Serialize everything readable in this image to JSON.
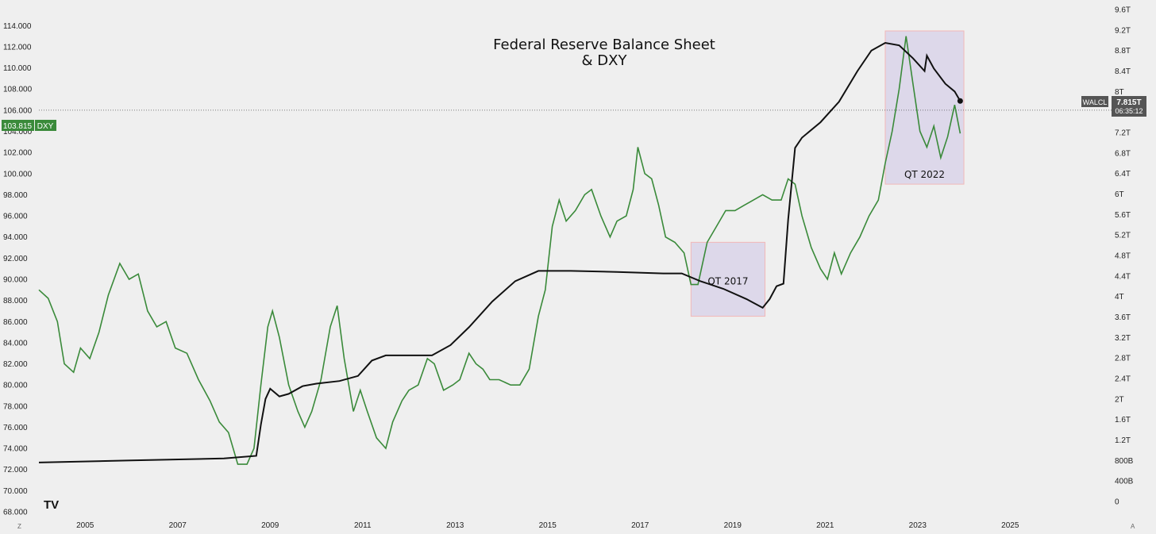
{
  "chart_data": {
    "type": "line",
    "title_line1": "Federal Reserve Balance Sheet",
    "title_line2": "& DXY",
    "left_axis": {
      "name": "DXY",
      "range": [
        68,
        115
      ],
      "ticks": [
        "68.000",
        "70.000",
        "72.000",
        "74.000",
        "76.000",
        "78.000",
        "80.000",
        "82.000",
        "84.000",
        "86.000",
        "88.000",
        "90.000",
        "92.000",
        "94.000",
        "96.000",
        "98.000",
        "100.000",
        "102.000",
        "104.000",
        "106.000",
        "108.000",
        "110.000",
        "112.000",
        "114.000"
      ],
      "tick_values": [
        68,
        70,
        72,
        74,
        76,
        78,
        80,
        82,
        84,
        86,
        88,
        90,
        92,
        94,
        96,
        98,
        100,
        102,
        104,
        106,
        108,
        110,
        112,
        114
      ]
    },
    "right_axis": {
      "name": "WALCL",
      "range_trillions": [
        0,
        9.6
      ],
      "ticks": [
        "0",
        "400B",
        "800B",
        "1.2T",
        "1.6T",
        "2T",
        "2.4T",
        "2.8T",
        "3.2T",
        "3.6T",
        "4T",
        "4.4T",
        "4.8T",
        "5.2T",
        "5.6T",
        "6T",
        "6.4T",
        "6.8T",
        "7.2T",
        "7.6T",
        "8T",
        "8.4T",
        "8.8T",
        "9.2T",
        "9.6T"
      ],
      "tick_values": [
        0,
        0.4,
        0.8,
        1.2,
        1.6,
        2.0,
        2.4,
        2.8,
        3.2,
        3.6,
        4.0,
        4.4,
        4.8,
        5.2,
        5.6,
        6.0,
        6.4,
        6.8,
        7.2,
        7.6,
        8.0,
        8.4,
        8.8,
        9.2,
        9.6
      ]
    },
    "x_axis": {
      "range": [
        2004.0,
        2026.3
      ],
      "ticks": [
        "2005",
        "2007",
        "2009",
        "2011",
        "2013",
        "2015",
        "2017",
        "2019",
        "2021",
        "2023",
        "2025"
      ],
      "tick_values": [
        2005,
        2007,
        2009,
        2011,
        2013,
        2015,
        2017,
        2019,
        2021,
        2023,
        2025
      ]
    },
    "series": [
      {
        "name": "DXY",
        "color": "#3a8a3a",
        "axis": "left",
        "points": [
          [
            2004.0,
            89.0
          ],
          [
            2004.2,
            88.2
          ],
          [
            2004.4,
            86.0
          ],
          [
            2004.55,
            82.0
          ],
          [
            2004.75,
            81.2
          ],
          [
            2004.9,
            83.5
          ],
          [
            2005.1,
            82.5
          ],
          [
            2005.3,
            85.0
          ],
          [
            2005.5,
            88.5
          ],
          [
            2005.75,
            91.5
          ],
          [
            2005.95,
            90.0
          ],
          [
            2006.15,
            90.5
          ],
          [
            2006.35,
            87.0
          ],
          [
            2006.55,
            85.5
          ],
          [
            2006.75,
            86.0
          ],
          [
            2006.95,
            83.5
          ],
          [
            2007.2,
            83.0
          ],
          [
            2007.45,
            80.5
          ],
          [
            2007.7,
            78.5
          ],
          [
            2007.9,
            76.5
          ],
          [
            2008.1,
            75.5
          ],
          [
            2008.3,
            72.5
          ],
          [
            2008.5,
            72.5
          ],
          [
            2008.65,
            74.0
          ],
          [
            2008.8,
            80.0
          ],
          [
            2008.95,
            85.5
          ],
          [
            2009.05,
            87.0
          ],
          [
            2009.2,
            84.5
          ],
          [
            2009.4,
            80.0
          ],
          [
            2009.6,
            77.5
          ],
          [
            2009.75,
            76.0
          ],
          [
            2009.9,
            77.5
          ],
          [
            2010.1,
            80.5
          ],
          [
            2010.3,
            85.5
          ],
          [
            2010.45,
            87.5
          ],
          [
            2010.6,
            82.5
          ],
          [
            2010.8,
            77.5
          ],
          [
            2010.95,
            79.5
          ],
          [
            2011.1,
            77.5
          ],
          [
            2011.3,
            75.0
          ],
          [
            2011.5,
            74.0
          ],
          [
            2011.65,
            76.5
          ],
          [
            2011.85,
            78.5
          ],
          [
            2012.0,
            79.5
          ],
          [
            2012.2,
            80.0
          ],
          [
            2012.4,
            82.5
          ],
          [
            2012.55,
            82.0
          ],
          [
            2012.75,
            79.5
          ],
          [
            2012.95,
            80.0
          ],
          [
            2013.1,
            80.5
          ],
          [
            2013.3,
            83.0
          ],
          [
            2013.45,
            82.0
          ],
          [
            2013.6,
            81.5
          ],
          [
            2013.75,
            80.5
          ],
          [
            2013.95,
            80.5
          ],
          [
            2014.2,
            80.0
          ],
          [
            2014.4,
            80.0
          ],
          [
            2014.6,
            81.5
          ],
          [
            2014.8,
            86.5
          ],
          [
            2014.95,
            89.0
          ],
          [
            2015.1,
            95.0
          ],
          [
            2015.25,
            97.5
          ],
          [
            2015.4,
            95.5
          ],
          [
            2015.6,
            96.5
          ],
          [
            2015.8,
            98.0
          ],
          [
            2015.95,
            98.5
          ],
          [
            2016.15,
            96.0
          ],
          [
            2016.35,
            94.0
          ],
          [
            2016.5,
            95.5
          ],
          [
            2016.7,
            96.0
          ],
          [
            2016.85,
            98.5
          ],
          [
            2016.95,
            102.5
          ],
          [
            2017.1,
            100.0
          ],
          [
            2017.25,
            99.5
          ],
          [
            2017.4,
            97.0
          ],
          [
            2017.55,
            94.0
          ],
          [
            2017.75,
            93.5
          ],
          [
            2017.95,
            92.5
          ],
          [
            2018.1,
            89.5
          ],
          [
            2018.25,
            89.5
          ],
          [
            2018.45,
            93.5
          ],
          [
            2018.65,
            95.0
          ],
          [
            2018.85,
            96.5
          ],
          [
            2019.05,
            96.5
          ],
          [
            2019.25,
            97.0
          ],
          [
            2019.45,
            97.5
          ],
          [
            2019.65,
            98.0
          ],
          [
            2019.85,
            97.5
          ],
          [
            2020.05,
            97.5
          ],
          [
            2020.2,
            99.5
          ],
          [
            2020.35,
            99.0
          ],
          [
            2020.5,
            96.0
          ],
          [
            2020.7,
            93.0
          ],
          [
            2020.9,
            91.0
          ],
          [
            2021.05,
            90.0
          ],
          [
            2021.2,
            92.5
          ],
          [
            2021.35,
            90.5
          ],
          [
            2021.55,
            92.5
          ],
          [
            2021.75,
            94.0
          ],
          [
            2021.95,
            96.0
          ],
          [
            2022.15,
            97.5
          ],
          [
            2022.3,
            101.0
          ],
          [
            2022.45,
            104.0
          ],
          [
            2022.6,
            108.0
          ],
          [
            2022.75,
            113.0
          ],
          [
            2022.9,
            108.5
          ],
          [
            2023.05,
            104.0
          ],
          [
            2023.2,
            102.5
          ],
          [
            2023.35,
            104.5
          ],
          [
            2023.5,
            101.5
          ],
          [
            2023.65,
            103.5
          ],
          [
            2023.8,
            106.5
          ],
          [
            2023.92,
            103.8
          ]
        ]
      },
      {
        "name": "WALCL",
        "color": "#111111",
        "axis": "right",
        "points": [
          [
            2004.0,
            0.76
          ],
          [
            2006.0,
            0.8
          ],
          [
            2008.0,
            0.84
          ],
          [
            2008.7,
            0.89
          ],
          [
            2008.8,
            1.5
          ],
          [
            2008.9,
            2.0
          ],
          [
            2009.0,
            2.2
          ],
          [
            2009.2,
            2.05
          ],
          [
            2009.4,
            2.1
          ],
          [
            2009.7,
            2.25
          ],
          [
            2010.0,
            2.3
          ],
          [
            2010.5,
            2.35
          ],
          [
            2010.9,
            2.45
          ],
          [
            2011.2,
            2.75
          ],
          [
            2011.5,
            2.85
          ],
          [
            2012.0,
            2.85
          ],
          [
            2012.5,
            2.85
          ],
          [
            2012.9,
            3.05
          ],
          [
            2013.3,
            3.4
          ],
          [
            2013.8,
            3.9
          ],
          [
            2014.3,
            4.3
          ],
          [
            2014.8,
            4.5
          ],
          [
            2015.5,
            4.5
          ],
          [
            2016.5,
            4.48
          ],
          [
            2017.5,
            4.45
          ],
          [
            2017.9,
            4.45
          ],
          [
            2018.3,
            4.3
          ],
          [
            2018.8,
            4.15
          ],
          [
            2019.3,
            3.95
          ],
          [
            2019.65,
            3.78
          ],
          [
            2019.8,
            3.95
          ],
          [
            2019.95,
            4.2
          ],
          [
            2020.1,
            4.25
          ],
          [
            2020.2,
            5.5
          ],
          [
            2020.35,
            6.9
          ],
          [
            2020.5,
            7.1
          ],
          [
            2020.9,
            7.4
          ],
          [
            2021.3,
            7.8
          ],
          [
            2021.7,
            8.4
          ],
          [
            2022.0,
            8.8
          ],
          [
            2022.3,
            8.95
          ],
          [
            2022.6,
            8.9
          ],
          [
            2022.9,
            8.65
          ],
          [
            2023.15,
            8.4
          ],
          [
            2023.2,
            8.7
          ],
          [
            2023.35,
            8.45
          ],
          [
            2023.6,
            8.15
          ],
          [
            2023.8,
            8.0
          ],
          [
            2023.92,
            7.815
          ]
        ]
      }
    ],
    "shaded_regions": [
      {
        "label": "QT 2017",
        "x": [
          2018.1,
          2019.7
        ],
        "y_dxy": [
          86.5,
          93.5
        ]
      },
      {
        "label": "QT 2022",
        "x": [
          2022.3,
          2024.0
        ],
        "y_dxy": [
          99.0,
          113.5
        ]
      }
    ],
    "reference_line_value": 106.0,
    "last_value_labels": {
      "dxy_value": "103.815",
      "dxy_name": "DXY",
      "walcl_name": "WALCL",
      "walcl_value": "7.815T",
      "walcl_countdown": "06:35:12"
    },
    "axis_corner_labels": {
      "left": "Z",
      "right": "A"
    },
    "logo_text": "TV"
  }
}
